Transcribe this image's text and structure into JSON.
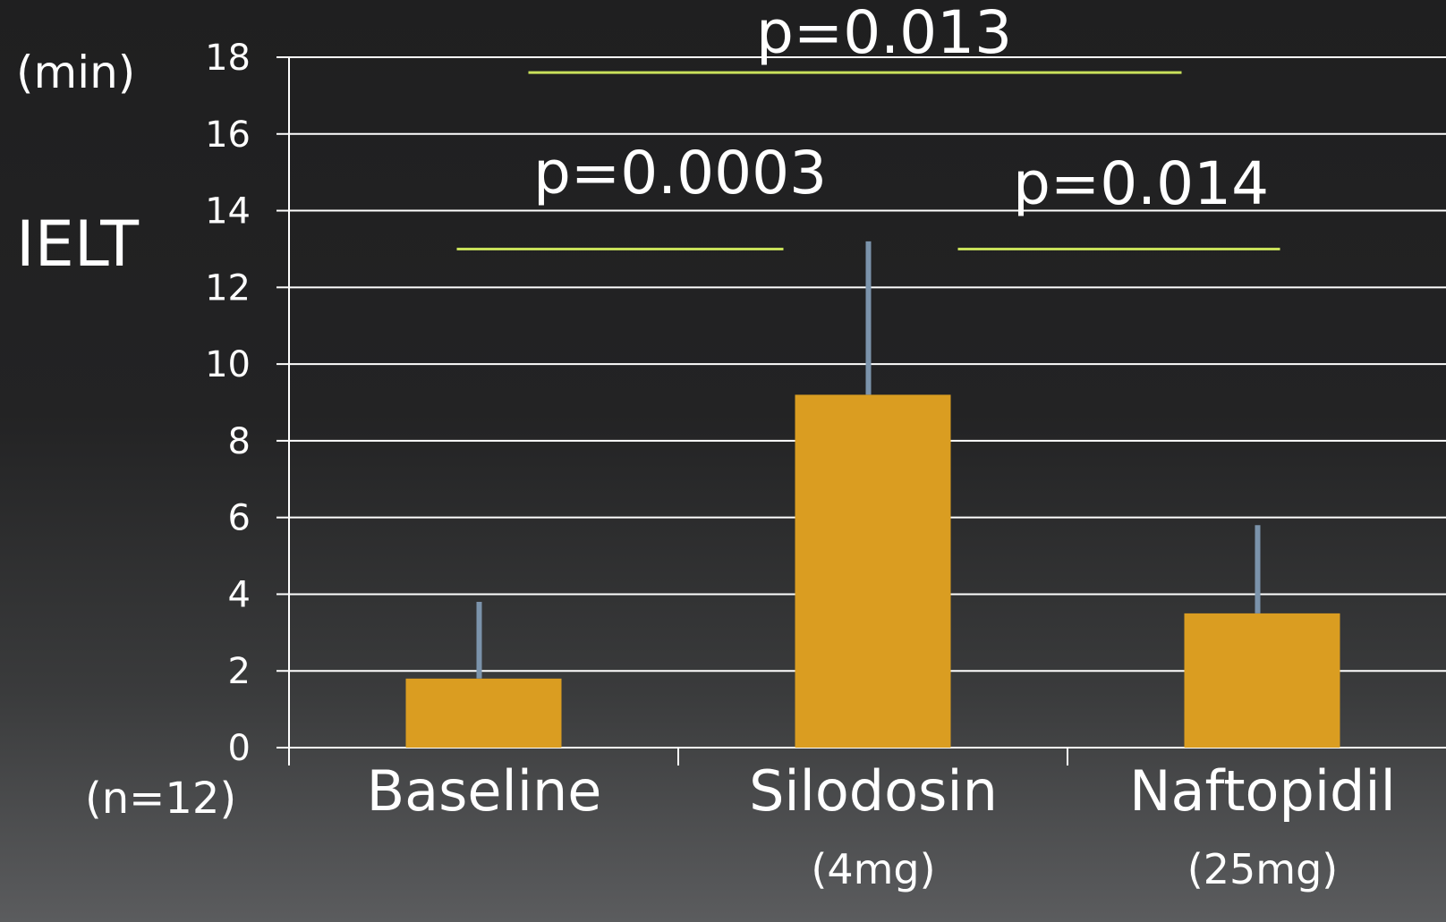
{
  "chart_data": {
    "type": "bar",
    "ylabel": "IELT",
    "y_unit": "(min)",
    "sample_note": "(n=12)",
    "categories": [
      "Baseline",
      "Silodosin",
      "Naftopidil"
    ],
    "category_sublabels": [
      "",
      "(4mg)",
      "(25mg)"
    ],
    "values": [
      1.8,
      9.2,
      3.5
    ],
    "error_upper": [
      3.8,
      13.2,
      5.8
    ],
    "ylim": [
      0,
      18
    ],
    "yticks": [
      "0",
      "2",
      "4",
      "6",
      "8",
      "10",
      "12",
      "14",
      "16",
      "18"
    ],
    "grid": true,
    "colors": {
      "bar": "#DA9D21",
      "error_bar": "#7B93AB",
      "significance_line": "#C8E05A",
      "grid": "#FFFFFF",
      "text": "#FFFFFF"
    },
    "significance": [
      {
        "from": "Baseline",
        "to": "Naftopidil",
        "label": "p=0.013",
        "level": 17.6
      },
      {
        "from": "Baseline",
        "to": "Silodosin",
        "label": "p=0.0003",
        "level": 13.0
      },
      {
        "from": "Silodosin",
        "to": "Naftopidil",
        "label": "p=0.014",
        "level": 13.0
      }
    ]
  }
}
